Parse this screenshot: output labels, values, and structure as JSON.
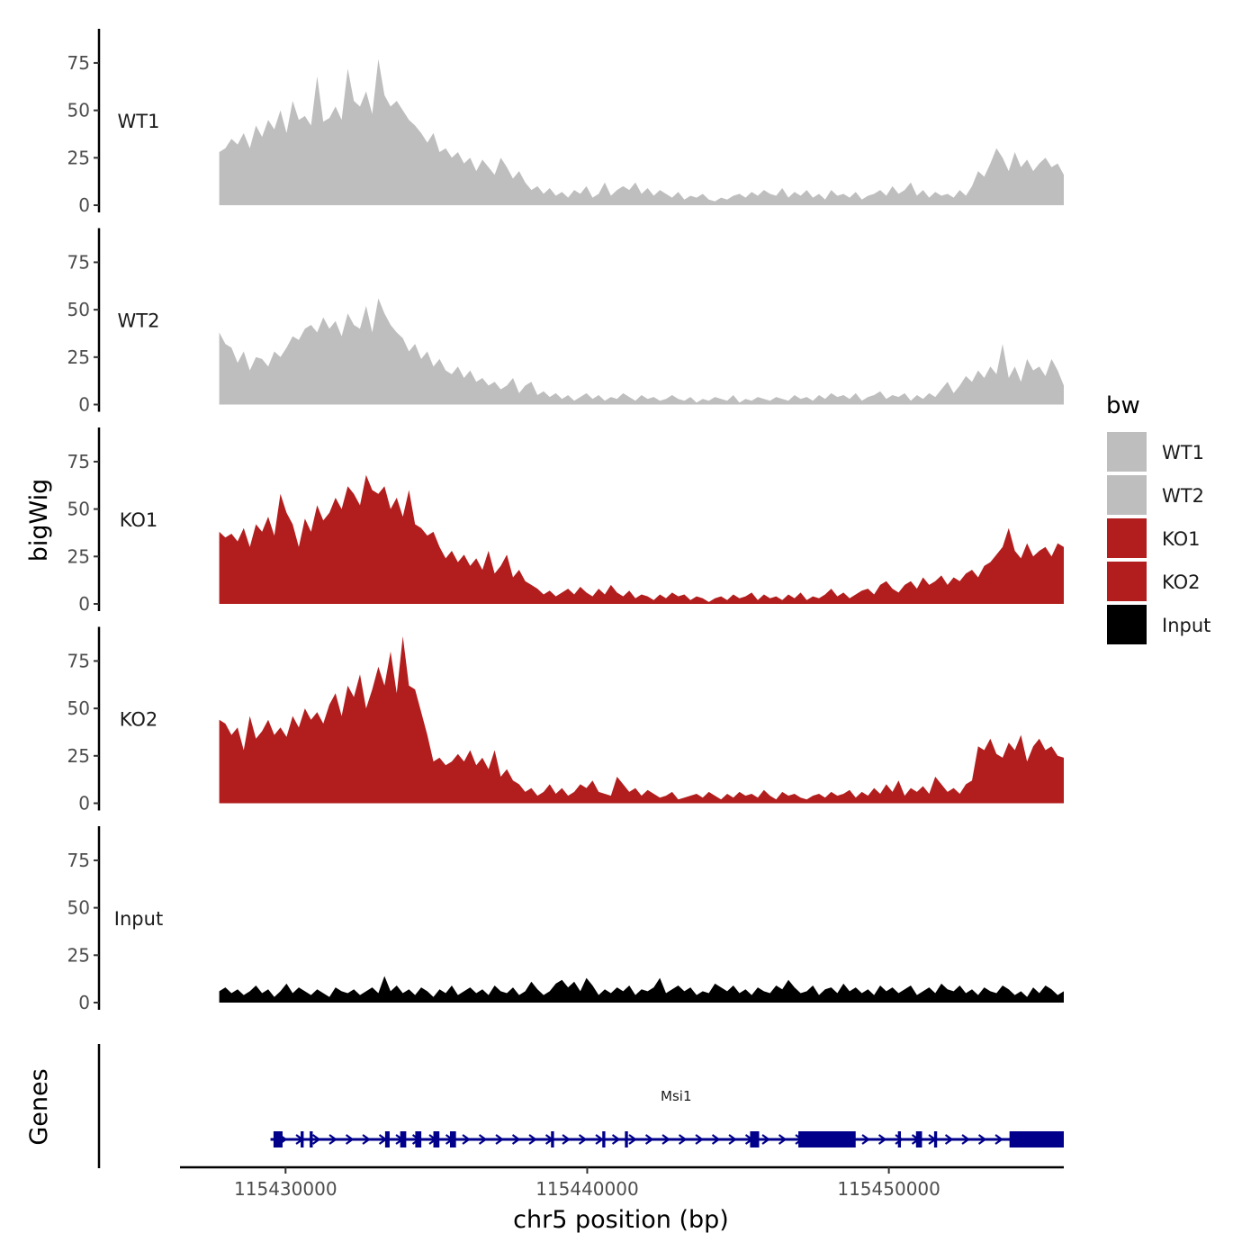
{
  "chart_data": {
    "type": "area",
    "xlabel": "chr5 position (bp)",
    "ylabel": "bigWig",
    "genes_ylabel": "Genes",
    "xlim": [
      115426500,
      115455800
    ],
    "x_ticks": [
      {
        "value": 115430000,
        "label": "115430000"
      },
      {
        "value": 115440000,
        "label": "115440000"
      },
      {
        "value": 115450000,
        "label": "115450000"
      }
    ],
    "ylim": [
      0,
      93
    ],
    "y_ticks": [
      {
        "value": 0,
        "label": "0"
      },
      {
        "value": 25,
        "label": "25"
      },
      {
        "value": 50,
        "label": "50"
      },
      {
        "value": 75,
        "label": "75"
      }
    ],
    "x_start": 115427800,
    "x_end": 115455800,
    "legend": {
      "title": "bw",
      "position": "right",
      "items": [
        {
          "label": "WT1",
          "color": "#BEBEBE"
        },
        {
          "label": "WT2",
          "color": "#BEBEBE"
        },
        {
          "label": "KO1",
          "color": "#B21E1E"
        },
        {
          "label": "KO2",
          "color": "#B21E1E"
        },
        {
          "label": "Input",
          "color": "#000000"
        }
      ]
    },
    "series": [
      {
        "name": "WT1",
        "color": "#BEBEBE",
        "values": [
          28,
          30,
          35,
          32,
          38,
          30,
          42,
          36,
          45,
          40,
          50,
          38,
          55,
          45,
          47,
          42,
          68,
          44,
          46,
          52,
          45,
          72,
          55,
          52,
          60,
          48,
          77,
          58,
          52,
          55,
          50,
          45,
          42,
          38,
          33,
          38,
          28,
          30,
          25,
          28,
          22,
          25,
          18,
          24,
          20,
          16,
          25,
          20,
          14,
          18,
          12,
          8,
          10,
          6,
          9,
          5,
          7,
          4,
          8,
          6,
          10,
          4,
          6,
          12,
          5,
          8,
          10,
          8,
          12,
          6,
          9,
          5,
          8,
          6,
          4,
          7,
          3,
          5,
          4,
          6,
          3,
          2,
          4,
          3,
          5,
          6,
          4,
          7,
          5,
          8,
          6,
          5,
          9,
          4,
          7,
          5,
          8,
          4,
          6,
          3,
          8,
          5,
          6,
          4,
          7,
          3,
          5,
          6,
          8,
          5,
          10,
          6,
          8,
          12,
          5,
          8,
          4,
          7,
          5,
          6,
          4,
          8,
          5,
          10,
          18,
          15,
          22,
          30,
          25,
          18,
          28,
          20,
          24,
          18,
          22,
          25,
          20,
          22,
          16
        ],
        "color_note": "values sampled uniformly from x_start to x_end"
      },
      {
        "name": "WT2",
        "color": "#BEBEBE",
        "values": [
          38,
          32,
          30,
          22,
          28,
          18,
          25,
          24,
          20,
          28,
          25,
          30,
          36,
          34,
          40,
          42,
          38,
          46,
          40,
          44,
          36,
          48,
          42,
          40,
          52,
          38,
          56,
          48,
          42,
          38,
          35,
          28,
          32,
          24,
          28,
          20,
          24,
          18,
          16,
          20,
          14,
          18,
          12,
          14,
          10,
          12,
          8,
          10,
          14,
          6,
          10,
          12,
          5,
          7,
          4,
          6,
          3,
          5,
          2,
          4,
          6,
          3,
          5,
          2,
          4,
          3,
          6,
          4,
          2,
          5,
          3,
          4,
          2,
          3,
          5,
          3,
          2,
          4,
          1,
          3,
          2,
          4,
          3,
          2,
          5,
          1,
          3,
          2,
          4,
          3,
          2,
          4,
          3,
          2,
          5,
          3,
          4,
          2,
          5,
          3,
          6,
          4,
          5,
          3,
          6,
          2,
          4,
          5,
          7,
          3,
          5,
          4,
          6,
          2,
          5,
          3,
          6,
          4,
          8,
          12,
          6,
          10,
          15,
          12,
          18,
          14,
          20,
          16,
          32,
          14,
          20,
          12,
          24,
          18,
          20,
          15,
          24,
          18,
          10
        ]
      },
      {
        "name": "KO1",
        "color": "#B21E1E",
        "values": [
          38,
          35,
          37,
          33,
          40,
          30,
          42,
          38,
          46,
          36,
          58,
          48,
          42,
          30,
          45,
          38,
          52,
          44,
          48,
          56,
          50,
          62,
          58,
          52,
          68,
          60,
          58,
          62,
          50,
          56,
          46,
          60,
          42,
          40,
          36,
          38,
          30,
          24,
          28,
          22,
          26,
          20,
          24,
          18,
          28,
          16,
          20,
          26,
          14,
          18,
          12,
          10,
          8,
          5,
          7,
          4,
          6,
          8,
          5,
          9,
          6,
          4,
          8,
          5,
          10,
          6,
          4,
          7,
          3,
          5,
          4,
          2,
          5,
          3,
          6,
          4,
          5,
          2,
          4,
          3,
          1,
          3,
          4,
          2,
          5,
          3,
          4,
          6,
          2,
          5,
          3,
          4,
          2,
          5,
          3,
          6,
          2,
          4,
          3,
          5,
          8,
          4,
          6,
          3,
          5,
          7,
          8,
          5,
          10,
          12,
          8,
          6,
          10,
          12,
          8,
          14,
          10,
          12,
          15,
          10,
          14,
          12,
          16,
          18,
          14,
          20,
          22,
          26,
          30,
          40,
          28,
          24,
          32,
          25,
          28,
          30,
          25,
          32,
          30
        ]
      },
      {
        "name": "KO2",
        "color": "#B21E1E",
        "values": [
          44,
          42,
          36,
          40,
          28,
          46,
          34,
          38,
          44,
          36,
          40,
          35,
          46,
          40,
          50,
          44,
          48,
          42,
          52,
          58,
          46,
          62,
          56,
          68,
          50,
          60,
          72,
          62,
          80,
          58,
          88,
          62,
          60,
          48,
          36,
          22,
          24,
          20,
          22,
          26,
          22,
          28,
          20,
          24,
          18,
          28,
          14,
          18,
          12,
          10,
          6,
          8,
          4,
          6,
          10,
          5,
          8,
          4,
          6,
          10,
          8,
          12,
          6,
          5,
          4,
          14,
          10,
          6,
          8,
          4,
          7,
          5,
          3,
          4,
          6,
          2,
          3,
          4,
          5,
          3,
          6,
          4,
          2,
          5,
          3,
          6,
          4,
          5,
          3,
          7,
          4,
          2,
          6,
          4,
          5,
          3,
          2,
          4,
          5,
          3,
          6,
          4,
          5,
          7,
          3,
          6,
          4,
          8,
          5,
          10,
          6,
          12,
          4,
          8,
          6,
          9,
          5,
          14,
          10,
          6,
          8,
          5,
          10,
          12,
          30,
          28,
          34,
          26,
          24,
          32,
          28,
          36,
          22,
          30,
          34,
          28,
          30,
          25,
          24
        ]
      },
      {
        "name": "Input",
        "color": "#000000",
        "values": [
          6,
          8,
          5,
          7,
          4,
          6,
          9,
          5,
          7,
          3,
          6,
          10,
          5,
          8,
          6,
          4,
          7,
          5,
          3,
          8,
          6,
          5,
          7,
          4,
          6,
          8,
          5,
          14,
          6,
          9,
          5,
          7,
          4,
          8,
          6,
          3,
          7,
          5,
          9,
          4,
          6,
          8,
          5,
          7,
          4,
          9,
          6,
          5,
          8,
          4,
          6,
          11,
          7,
          4,
          6,
          10,
          12,
          8,
          11,
          6,
          13,
          9,
          4,
          7,
          5,
          8,
          6,
          9,
          4,
          7,
          6,
          8,
          13,
          5,
          7,
          9,
          6,
          8,
          4,
          6,
          5,
          10,
          8,
          6,
          9,
          5,
          7,
          4,
          8,
          6,
          5,
          9,
          7,
          12,
          8,
          5,
          6,
          9,
          4,
          7,
          8,
          5,
          10,
          6,
          8,
          5,
          7,
          4,
          9,
          6,
          8,
          5,
          7,
          9,
          4,
          6,
          8,
          5,
          10,
          7,
          6,
          9,
          5,
          7,
          4,
          8,
          6,
          5,
          9,
          7,
          4,
          6,
          3,
          8,
          5,
          9,
          7,
          4,
          6
        ]
      }
    ],
    "genes": [
      {
        "name": "Msi1",
        "strand": "+",
        "start": 115429500,
        "end": 115455800,
        "color": "#00008B",
        "exons": [
          [
            115429600,
            115429900
          ],
          [
            115430500,
            115430600
          ],
          [
            115430800,
            115430900
          ],
          [
            115433300,
            115433450
          ],
          [
            115433800,
            115434000
          ],
          [
            115434300,
            115434500
          ],
          [
            115434900,
            115435100
          ],
          [
            115435450,
            115435650
          ],
          [
            115438800,
            115438900
          ],
          [
            115440500,
            115440600
          ],
          [
            115441250,
            115441350
          ],
          [
            115445400,
            115445700
          ],
          [
            115447000,
            115448900
          ],
          [
            115450300,
            115450400
          ],
          [
            115450900,
            115451100
          ],
          [
            115451500,
            115451600
          ],
          [
            115454000,
            115455800
          ]
        ]
      }
    ]
  }
}
